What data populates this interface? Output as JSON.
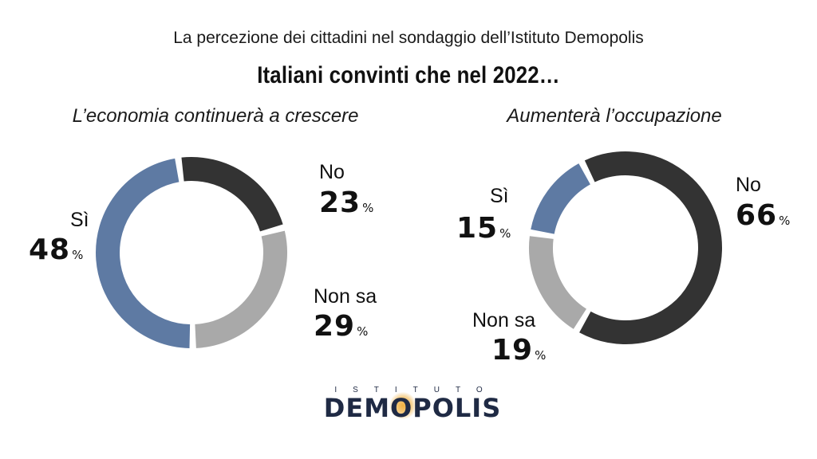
{
  "header": {
    "supertitle": "La percezione dei cittadini nel sondaggio dell’Istituto Demopolis",
    "title": "Italiani convinti che nel 2022…"
  },
  "colors": {
    "si": "#5e7aa3",
    "no": "#333333",
    "non_sa": "#a9a9a9"
  },
  "chart_data": [
    {
      "type": "pie",
      "variant": "donut",
      "title": "L’economia continuerà a crescere",
      "slices": [
        {
          "label": "No",
          "value": 23,
          "unit": "%"
        },
        {
          "label": "Non sa",
          "value": 29,
          "unit": "%"
        },
        {
          "label": "Sì",
          "value": 48,
          "unit": "%"
        }
      ]
    },
    {
      "type": "pie",
      "variant": "donut",
      "title": "Aumenterà l’occupazione",
      "slices": [
        {
          "label": "No",
          "value": 66,
          "unit": "%"
        },
        {
          "label": "Non sa",
          "value": 19,
          "unit": "%"
        },
        {
          "label": "Sì",
          "value": 15,
          "unit": "%"
        }
      ]
    }
  ],
  "logo": {
    "top_text": "ISTITUTO",
    "main_text": "DEMOPOLIS",
    "accent_color": "#f0b040"
  }
}
